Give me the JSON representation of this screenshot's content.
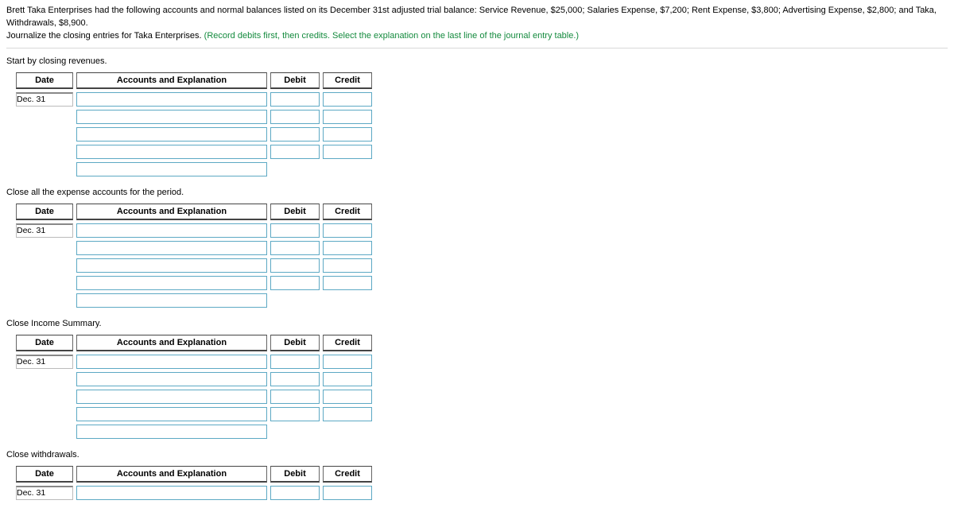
{
  "intro": {
    "line1": "Brett Taka Enterprises had the following accounts and normal balances listed on its December 31st adjusted trial balance: Service Revenue, $25,000; Salaries Expense, $7,200; Rent Expense, $3,800; Advertising Expense, $2,800; and Taka, Withdrawals, $8,900.",
    "line2a": "Journalize the closing entries for Taka Enterprises. ",
    "line2b": "(Record debits first, then credits. Select the explanation on the last line of the journal entry table.)"
  },
  "headers": {
    "date": "Date",
    "acct": "Accounts and Explanation",
    "debit": "Debit",
    "credit": "Credit"
  },
  "dateValue": "Dec. 31",
  "sections": {
    "s1": "Start by closing revenues.",
    "s2": "Close all the expense accounts for the period.",
    "s3": "Close Income Summary.",
    "s4": "Close withdrawals."
  }
}
